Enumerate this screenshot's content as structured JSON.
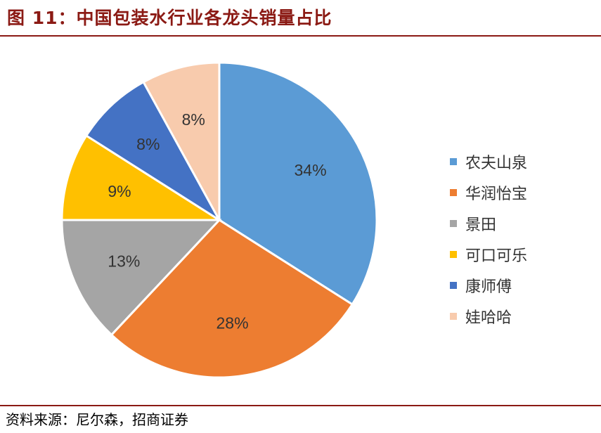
{
  "header": {
    "title": "图 11：中国包装水行业各龙头销量占比"
  },
  "footer": {
    "source": "资料来源：尼尔森，招商证券"
  },
  "chart_data": {
    "type": "pie",
    "title": "",
    "unit": "%",
    "legend_position": "right",
    "slices": [
      {
        "label": "农夫山泉",
        "value": 34,
        "value_label": "34%",
        "color": "#5b9bd5"
      },
      {
        "label": "华润怡宝",
        "value": 28,
        "value_label": "28%",
        "color": "#ed7d31"
      },
      {
        "label": "景田",
        "value": 13,
        "value_label": "13%",
        "color": "#a5a5a5"
      },
      {
        "label": "可口可乐",
        "value": 9,
        "value_label": "9%",
        "color": "#ffc000"
      },
      {
        "label": "康师傅",
        "value": 8,
        "value_label": "8%",
        "color": "#4472c4"
      },
      {
        "label": "娃哈哈",
        "value": 8,
        "value_label": "8%",
        "color": "#f8cbad"
      }
    ]
  }
}
